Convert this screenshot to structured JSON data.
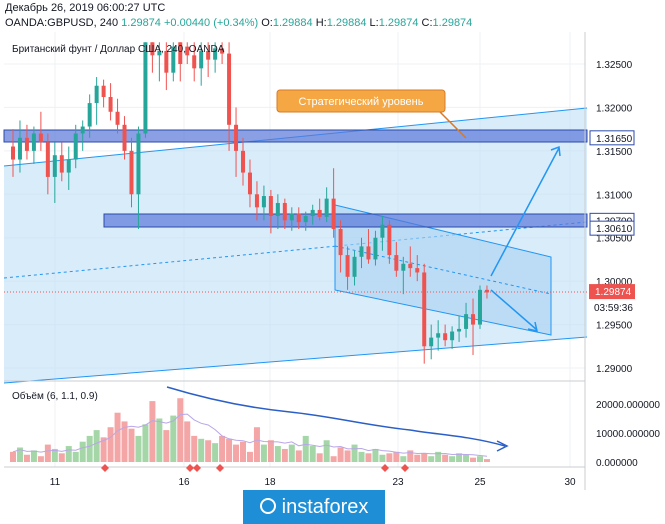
{
  "header": {
    "datetime": "Декабрь 26, 2019 06:00:27 UTC",
    "symbol": "OANDA:GBPUSD, 240",
    "last": "1.29874",
    "change": "+0.00440 (+0.34%)",
    "o_label": "O:",
    "o_value": "1.29884",
    "h_label": "H:",
    "h_value": "1.29884",
    "l_label": "L:",
    "l_value": "1.29874",
    "c_label": "C:",
    "c_value": "1.29874"
  },
  "chart_title": "Британский фунт / Доллар США, 240, OANDA",
  "annotation": "Стратегический уровень",
  "volume_label": "Объём (6, 1.1, 0.9)",
  "logo_text": "instaforex",
  "colors": {
    "up": "#26a69a",
    "down": "#ef5350",
    "level": "#4a6fd6",
    "channel": "#2196f3",
    "annotation_bg": "#f4a742"
  },
  "chart_data": {
    "type": "candlestick",
    "symbol": "GBPUSD",
    "ylim": [
      1.2875,
      1.3275
    ],
    "price_ticks": [
      "1.32500",
      "1.32000",
      "1.31500",
      "1.31000",
      "1.30500",
      "1.30000",
      "1.29500",
      "1.29000"
    ],
    "date_ticks": [
      "11",
      "16",
      "18",
      "23",
      "25",
      "30"
    ],
    "levels": [
      "1.31650",
      "1.30700",
      "1.30610"
    ],
    "current_price": "1.29874",
    "countdown": "03:59:36",
    "volume_ticks": [
      "20000.000000",
      "10000.000000",
      "0.000000"
    ],
    "volume_ylim": [
      0,
      27000
    ],
    "candles": [
      {
        "o": 1.3155,
        "h": 1.3175,
        "l": 1.312,
        "c": 1.314
      },
      {
        "o": 1.314,
        "h": 1.3185,
        "l": 1.3125,
        "c": 1.3165
      },
      {
        "o": 1.3165,
        "h": 1.318,
        "l": 1.314,
        "c": 1.315
      },
      {
        "o": 1.315,
        "h": 1.3178,
        "l": 1.3135,
        "c": 1.317
      },
      {
        "o": 1.317,
        "h": 1.3195,
        "l": 1.315,
        "c": 1.316
      },
      {
        "o": 1.316,
        "h": 1.317,
        "l": 1.31,
        "c": 1.312
      },
      {
        "o": 1.312,
        "h": 1.316,
        "l": 1.309,
        "c": 1.3145
      },
      {
        "o": 1.3145,
        "h": 1.316,
        "l": 1.3115,
        "c": 1.3125
      },
      {
        "o": 1.3125,
        "h": 1.3155,
        "l": 1.3105,
        "c": 1.314
      },
      {
        "o": 1.314,
        "h": 1.318,
        "l": 1.313,
        "c": 1.317
      },
      {
        "o": 1.317,
        "h": 1.3185,
        "l": 1.315,
        "c": 1.3178
      },
      {
        "o": 1.3178,
        "h": 1.3215,
        "l": 1.3165,
        "c": 1.3205
      },
      {
        "o": 1.3205,
        "h": 1.3235,
        "l": 1.318,
        "c": 1.3225
      },
      {
        "o": 1.3225,
        "h": 1.3232,
        "l": 1.32,
        "c": 1.3212
      },
      {
        "o": 1.3212,
        "h": 1.3228,
        "l": 1.3185,
        "c": 1.3195
      },
      {
        "o": 1.3195,
        "h": 1.321,
        "l": 1.317,
        "c": 1.318
      },
      {
        "o": 1.318,
        "h": 1.319,
        "l": 1.314,
        "c": 1.315
      },
      {
        "o": 1.315,
        "h": 1.3165,
        "l": 1.3085,
        "c": 1.31
      },
      {
        "o": 1.31,
        "h": 1.3178,
        "l": 1.306,
        "c": 1.317
      },
      {
        "o": 1.317,
        "h": 1.3275,
        "l": 1.3165,
        "c": 1.3275
      },
      {
        "o": 1.3275,
        "h": 1.3275,
        "l": 1.324,
        "c": 1.326
      },
      {
        "o": 1.326,
        "h": 1.3275,
        "l": 1.323,
        "c": 1.3265
      },
      {
        "o": 1.3265,
        "h": 1.3275,
        "l": 1.322,
        "c": 1.324
      },
      {
        "o": 1.324,
        "h": 1.3275,
        "l": 1.323,
        "c": 1.327
      },
      {
        "o": 1.3275,
        "h": 1.3275,
        "l": 1.323,
        "c": 1.325
      },
      {
        "o": 1.327,
        "h": 1.3275,
        "l": 1.325,
        "c": 1.326
      },
      {
        "o": 1.326,
        "h": 1.3275,
        "l": 1.323,
        "c": 1.3245
      },
      {
        "o": 1.3245,
        "h": 1.3275,
        "l": 1.3225,
        "c": 1.3265
      },
      {
        "o": 1.3265,
        "h": 1.3275,
        "l": 1.3235,
        "c": 1.3255
      },
      {
        "o": 1.3255,
        "h": 1.3275,
        "l": 1.324,
        "c": 1.3268
      },
      {
        "o": 1.3268,
        "h": 1.3275,
        "l": 1.325,
        "c": 1.3262
      },
      {
        "o": 1.3262,
        "h": 1.3275,
        "l": 1.315,
        "c": 1.318
      },
      {
        "o": 1.318,
        "h": 1.32,
        "l": 1.312,
        "c": 1.315
      },
      {
        "o": 1.315,
        "h": 1.3165,
        "l": 1.311,
        "c": 1.3125
      },
      {
        "o": 1.3125,
        "h": 1.314,
        "l": 1.3085,
        "c": 1.31
      },
      {
        "o": 1.31,
        "h": 1.3115,
        "l": 1.307,
        "c": 1.3085
      },
      {
        "o": 1.3085,
        "h": 1.311,
        "l": 1.307,
        "c": 1.3098
      },
      {
        "o": 1.3098,
        "h": 1.3105,
        "l": 1.3055,
        "c": 1.3075
      },
      {
        "o": 1.3075,
        "h": 1.31,
        "l": 1.306,
        "c": 1.309
      },
      {
        "o": 1.309,
        "h": 1.3095,
        "l": 1.306,
        "c": 1.307
      },
      {
        "o": 1.307,
        "h": 1.3085,
        "l": 1.3058,
        "c": 1.3078
      },
      {
        "o": 1.3078,
        "h": 1.3085,
        "l": 1.306,
        "c": 1.3068
      },
      {
        "o": 1.3068,
        "h": 1.308,
        "l": 1.3058,
        "c": 1.3075
      },
      {
        "o": 1.3075,
        "h": 1.3088,
        "l": 1.3065,
        "c": 1.3082
      },
      {
        "o": 1.3082,
        "h": 1.3095,
        "l": 1.307,
        "c": 1.3074
      },
      {
        "o": 1.3074,
        "h": 1.3108,
        "l": 1.3068,
        "c": 1.3095
      },
      {
        "o": 1.3095,
        "h": 1.313,
        "l": 1.305,
        "c": 1.306
      },
      {
        "o": 1.306,
        "h": 1.307,
        "l": 1.301,
        "c": 1.303
      },
      {
        "o": 1.303,
        "h": 1.304,
        "l": 1.299,
        "c": 1.3005
      },
      {
        "o": 1.3005,
        "h": 1.3035,
        "l": 1.2995,
        "c": 1.3028
      },
      {
        "o": 1.3028,
        "h": 1.305,
        "l": 1.3015,
        "c": 1.304
      },
      {
        "o": 1.304,
        "h": 1.306,
        "l": 1.302,
        "c": 1.3025
      },
      {
        "o": 1.3025,
        "h": 1.3058,
        "l": 1.3018,
        "c": 1.305
      },
      {
        "o": 1.305,
        "h": 1.3075,
        "l": 1.3035,
        "c": 1.3065
      },
      {
        "o": 1.3065,
        "h": 1.307,
        "l": 1.302,
        "c": 1.303
      },
      {
        "o": 1.303,
        "h": 1.3045,
        "l": 1.3005,
        "c": 1.3012
      },
      {
        "o": 1.3012,
        "h": 1.3028,
        "l": 1.2985,
        "c": 1.302
      },
      {
        "o": 1.302,
        "h": 1.304,
        "l": 1.3005,
        "c": 1.3015
      },
      {
        "o": 1.3015,
        "h": 1.303,
        "l": 1.3,
        "c": 1.301
      },
      {
        "o": 1.301,
        "h": 1.302,
        "l": 1.2905,
        "c": 1.2925
      },
      {
        "o": 1.2925,
        "h": 1.295,
        "l": 1.291,
        "c": 1.2935
      },
      {
        "o": 1.2935,
        "h": 1.2955,
        "l": 1.292,
        "c": 1.294
      },
      {
        "o": 1.294,
        "h": 1.295,
        "l": 1.2925,
        "c": 1.2932
      },
      {
        "o": 1.2932,
        "h": 1.2948,
        "l": 1.2922,
        "c": 1.2942
      },
      {
        "o": 1.2942,
        "h": 1.296,
        "l": 1.293,
        "c": 1.2945
      },
      {
        "o": 1.2945,
        "h": 1.2975,
        "l": 1.2935,
        "c": 1.2962
      },
      {
        "o": 1.2962,
        "h": 1.298,
        "l": 1.2915,
        "c": 1.295
      },
      {
        "o": 1.295,
        "h": 1.2995,
        "l": 1.2945,
        "c": 1.299
      },
      {
        "o": 1.299,
        "h": 1.2995,
        "l": 1.298,
        "c": 1.2987
      }
    ],
    "volume": [
      3500,
      5000,
      2500,
      4000,
      2000,
      6000,
      4500,
      3000,
      5500,
      3500,
      7000,
      9000,
      11000,
      8500,
      12000,
      17000,
      14000,
      11500,
      9000,
      13000,
      21000,
      15000,
      11000,
      16000,
      22000,
      14000,
      9000,
      8000,
      7500,
      6500,
      9000,
      8000,
      6000,
      7000,
      3500,
      12000,
      6000,
      7500,
      5500,
      4500,
      6000,
      4000,
      9000,
      5500,
      3000,
      7500,
      2000,
      5000,
      4000,
      6000,
      3500,
      3000,
      4500,
      2500,
      3000,
      3500,
      2000,
      4000,
      2500,
      3000,
      2000,
      3500,
      2500,
      2000,
      3000,
      2500,
      1500,
      2000,
      1000
    ]
  }
}
